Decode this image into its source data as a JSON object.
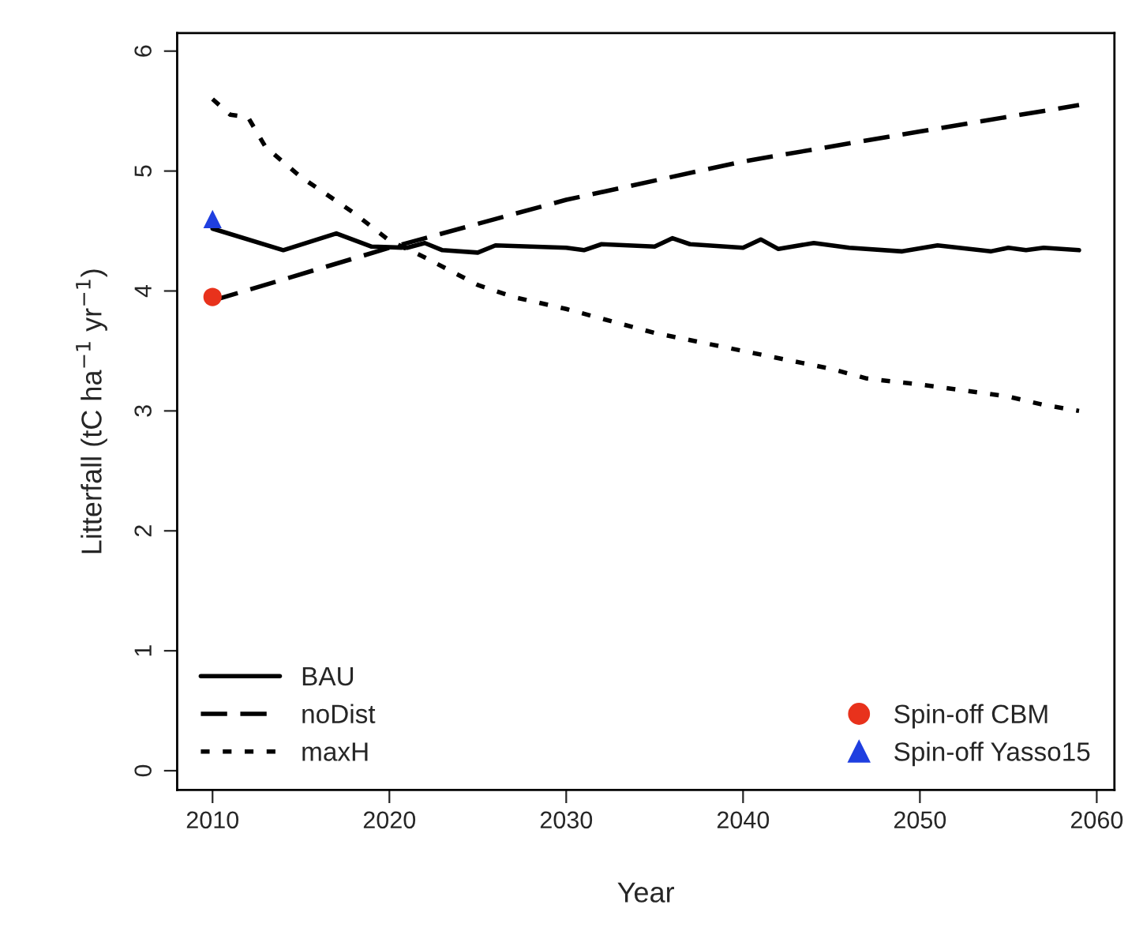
{
  "chart_data": {
    "type": "line",
    "xlabel": "Year",
    "ylabel": "Litterfall (tC ha$^{−1}$ yr$^{−1}$)",
    "xlim": [
      2008,
      2061
    ],
    "ylim": [
      -0.16,
      6.15
    ],
    "xticks": [
      2010,
      2020,
      2030,
      2040,
      2050,
      2060
    ],
    "yticks": [
      0,
      1,
      2,
      3,
      4,
      5,
      6
    ],
    "grid": false,
    "legend": "bottom left",
    "series": [
      {
        "name": "BAU",
        "line_style": "solid",
        "color": "#000000",
        "x": [
          2010,
          2014,
          2017,
          2019,
          2021,
          2022,
          2023,
          2025,
          2026,
          2030,
          2031,
          2032,
          2035,
          2036,
          2037,
          2040,
          2041,
          2042,
          2044,
          2046,
          2049,
          2051,
          2054,
          2055,
          2056,
          2057,
          2059
        ],
        "values": [
          4.52,
          4.34,
          4.48,
          4.37,
          4.36,
          4.4,
          4.34,
          4.32,
          4.38,
          4.36,
          4.34,
          4.39,
          4.37,
          4.44,
          4.39,
          4.36,
          4.43,
          4.35,
          4.4,
          4.36,
          4.33,
          4.38,
          4.33,
          4.36,
          4.34,
          4.36,
          4.34
        ]
      },
      {
        "name": "noDist",
        "line_style": "dashed",
        "color": "#000000",
        "x": [
          2010,
          2020,
          2030,
          2040,
          2050,
          2059
        ],
        "values": [
          3.92,
          4.36,
          4.76,
          5.08,
          5.33,
          5.55
        ]
      },
      {
        "name": "maxH",
        "line_style": "dotted",
        "color": "#000000",
        "x": [
          2010,
          2011,
          2012,
          2013,
          2015,
          2018,
          2020,
          2022,
          2025,
          2027,
          2030,
          2035,
          2040,
          2045,
          2047,
          2050,
          2055,
          2057,
          2059
        ],
        "values": [
          5.6,
          5.47,
          5.45,
          5.2,
          4.95,
          4.65,
          4.42,
          4.28,
          4.05,
          3.95,
          3.85,
          3.65,
          3.5,
          3.35,
          3.27,
          3.22,
          3.12,
          3.05,
          3.0
        ]
      },
      {
        "name": "Spin-off CBM",
        "type": "scatter",
        "marker": "circle",
        "color": "#e8321c",
        "x": [
          2010
        ],
        "values": [
          3.95
        ]
      },
      {
        "name": "Spin-off Yasso15",
        "type": "scatter",
        "marker": "triangle",
        "color": "#1f3fe0",
        "x": [
          2010
        ],
        "values": [
          4.6
        ]
      }
    ]
  }
}
